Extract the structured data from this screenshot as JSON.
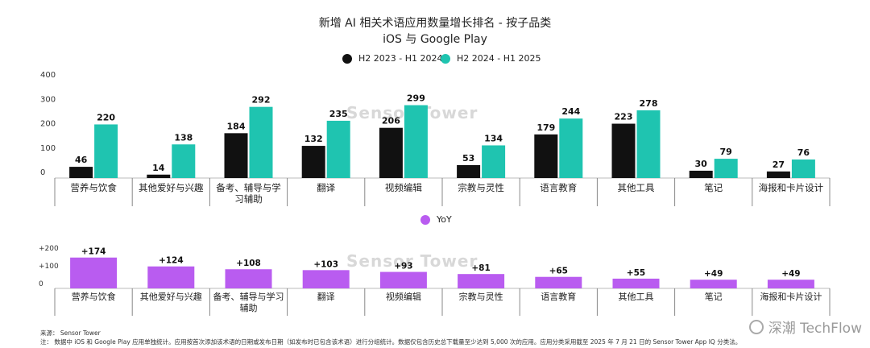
{
  "header": {
    "title": "新增 AI 相关术语应用数量增长排名 - 按子品类",
    "subtitle": "iOS 与 Google Play"
  },
  "colors": {
    "h2023": "#111111",
    "h2024": "#1fc4b0",
    "yoy": "#b95cf0",
    "axis": "#bbbbbb",
    "divider": "#888888"
  },
  "chart_data": [
    {
      "type": "bar",
      "categories": [
        "营养与饮食",
        "其他爱好与兴趣",
        "备考、辅导与学习辅助",
        "翻译",
        "视频编辑",
        "宗教与灵性",
        "语言教育",
        "其他工具",
        "笔记",
        "海报和卡片设计"
      ],
      "category_lines": [
        [
          "营养与饮食"
        ],
        [
          "其他爱好与兴趣"
        ],
        [
          "备考、辅导与学",
          "习辅助"
        ],
        [
          "翻译"
        ],
        [
          "视频编辑"
        ],
        [
          "宗教与灵性"
        ],
        [
          "语言教育"
        ],
        [
          "其他工具"
        ],
        [
          "笔记"
        ],
        [
          "海报和卡片设计"
        ]
      ],
      "series": [
        {
          "name": "H2 2023 - H1 2024",
          "values": [
            46,
            14,
            184,
            132,
            206,
            53,
            179,
            223,
            30,
            27
          ]
        },
        {
          "name": "H2 2024 - H1 2025",
          "values": [
            220,
            138,
            292,
            235,
            299,
            134,
            244,
            278,
            79,
            76
          ]
        }
      ],
      "yticks": [
        "0",
        "100",
        "200",
        "300",
        "400"
      ],
      "ylim": [
        0,
        400
      ],
      "legend": "top-center"
    },
    {
      "type": "bar",
      "categories": [
        "营养与饮食",
        "其他爱好与兴趣",
        "备考、辅导与学习辅助",
        "翻译",
        "视频编辑",
        "宗教与灵性",
        "语言教育",
        "其他工具",
        "笔记",
        "海报和卡片设计"
      ],
      "category_lines": [
        [
          "营养与饮食"
        ],
        [
          "其他爱好与兴趣"
        ],
        [
          "备考、辅导与学习",
          "辅助"
        ],
        [
          "翻译"
        ],
        [
          "视频编辑"
        ],
        [
          "宗教与灵性"
        ],
        [
          "语言教育"
        ],
        [
          "其他工具"
        ],
        [
          "笔记"
        ],
        [
          "海报和卡片设计"
        ]
      ],
      "series": [
        {
          "name": "YoY",
          "values": [
            174,
            124,
            108,
            103,
            93,
            81,
            65,
            55,
            49,
            49
          ]
        }
      ],
      "value_labels": [
        "+174",
        "+124",
        "+108",
        "+103",
        "+93",
        "+81",
        "+65",
        "+55",
        "+49",
        "+49"
      ],
      "yticks": [
        "0",
        "+100",
        "+200"
      ],
      "ylim": [
        0,
        200
      ],
      "legend": "top-left"
    }
  ],
  "watermark": "Sensor Tower",
  "footer": {
    "source": "来源：  Sensor Tower",
    "note": "注：  数据中 iOS 和 Google Play 应用单独统计。应用按首次添加该术语的日期或发布日期（如发布时已包含该术语）进行分组统计。数据仅包含历史总下载量至少达到 5,000 次的应用。应用分类采用截至 2025 年 7 月 21 日的 Sensor Tower App IQ 分类法。"
  },
  "brand": "深潮 TechFlow"
}
